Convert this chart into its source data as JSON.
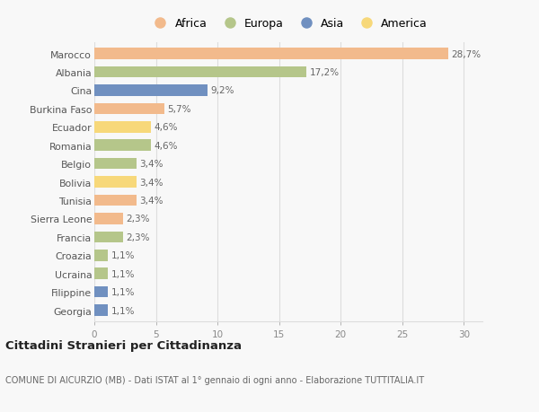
{
  "categories": [
    "Marocco",
    "Albania",
    "Cina",
    "Burkina Faso",
    "Ecuador",
    "Romania",
    "Belgio",
    "Bolivia",
    "Tunisia",
    "Sierra Leone",
    "Francia",
    "Croazia",
    "Ucraina",
    "Filippine",
    "Georgia"
  ],
  "values": [
    28.7,
    17.2,
    9.2,
    5.7,
    4.6,
    4.6,
    3.4,
    3.4,
    3.4,
    2.3,
    2.3,
    1.1,
    1.1,
    1.1,
    1.1
  ],
  "labels": [
    "28,7%",
    "17,2%",
    "9,2%",
    "5,7%",
    "4,6%",
    "4,6%",
    "3,4%",
    "3,4%",
    "3,4%",
    "2,3%",
    "2,3%",
    "1,1%",
    "1,1%",
    "1,1%",
    "1,1%"
  ],
  "colors": [
    "#F2BA8C",
    "#B5C68A",
    "#7090C0",
    "#F2BA8C",
    "#F7D87A",
    "#B5C68A",
    "#B5C68A",
    "#F7D87A",
    "#F2BA8C",
    "#F2BA8C",
    "#B5C68A",
    "#B5C68A",
    "#B5C68A",
    "#7090C0",
    "#7090C0"
  ],
  "legend_labels": [
    "Africa",
    "Europa",
    "Asia",
    "America"
  ],
  "legend_colors": [
    "#F2BA8C",
    "#B5C68A",
    "#7090C0",
    "#F7D87A"
  ],
  "title": "Cittadini Stranieri per Cittadinanza",
  "subtitle": "COMUNE DI AICURZIO (MB) - Dati ISTAT al 1° gennaio di ogni anno - Elaborazione TUTTITALIA.IT",
  "xlim": [
    0,
    31.5
  ],
  "xticks": [
    0,
    5,
    10,
    15,
    20,
    25,
    30
  ],
  "bg_color": "#f8f8f8",
  "grid_color": "#dddddd",
  "bar_height": 0.62,
  "label_fontsize": 7.5,
  "ytick_fontsize": 7.8,
  "xtick_fontsize": 7.5
}
